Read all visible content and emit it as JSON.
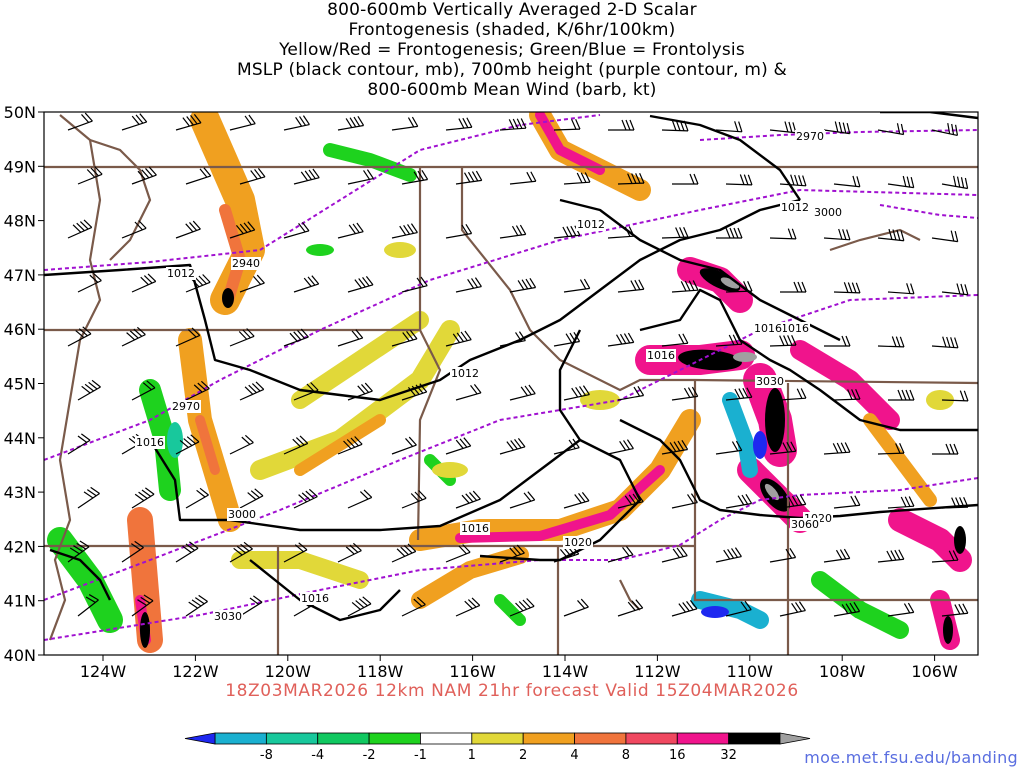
{
  "title": {
    "line1": "800-600mb Vertically Averaged 2-D Scalar",
    "line2": "Frontogenesis (shaded, K/6hr/100km)",
    "line3": "Yellow/Red = Frontogenesis;  Green/Blue = Frontolysis",
    "line4": "MSLP (black contour, mb), 700mb height (purple contour, m) &",
    "line5": "800-600mb Mean Wind (barb, kt)"
  },
  "footer": {
    "run_info": "18Z03MAR2026 12km NAM 21hr forecast Valid 15Z04MAR2026",
    "credit": "moe.met.fsu.edu/banding"
  },
  "map": {
    "lat_labels": [
      "50N",
      "49N",
      "48N",
      "47N",
      "46N",
      "45N",
      "44N",
      "43N",
      "42N",
      "41N",
      "40N"
    ],
    "lon_labels": [
      "124W",
      "122W",
      "120W",
      "118W",
      "116W",
      "114W",
      "112W",
      "110W",
      "108W",
      "106W"
    ],
    "mslp_labels": [
      "1012",
      "1012",
      "1012",
      "1016",
      "1016",
      "1016",
      "1016",
      "1020",
      "1020",
      "1012",
      "1016",
      "1016"
    ],
    "height_labels": [
      "2970",
      "3000",
      "2940",
      "2970",
      "3000",
      "3030",
      "3030",
      "3060"
    ]
  },
  "colorbar": {
    "labels": [
      "-8",
      "-4",
      "-2",
      "-1",
      "1",
      "2",
      "4",
      "8",
      "16",
      "32"
    ],
    "colors": [
      "#1e28f0",
      "#1ab0d0",
      "#18c89c",
      "#10c860",
      "#1ed21e",
      "#ffffff",
      "#e1d839",
      "#f0a020",
      "#f0743c",
      "#f04860",
      "#f0148c",
      "#000000",
      "#a0a0a0"
    ]
  },
  "colors": {
    "mslp_contour": "#000000",
    "height_contour": "#a010d0",
    "boundaries": "#7a5a4a",
    "wind_barbs": "#000000",
    "run_info_text": "#e0605a",
    "credit_text": "#5a6ee0"
  }
}
